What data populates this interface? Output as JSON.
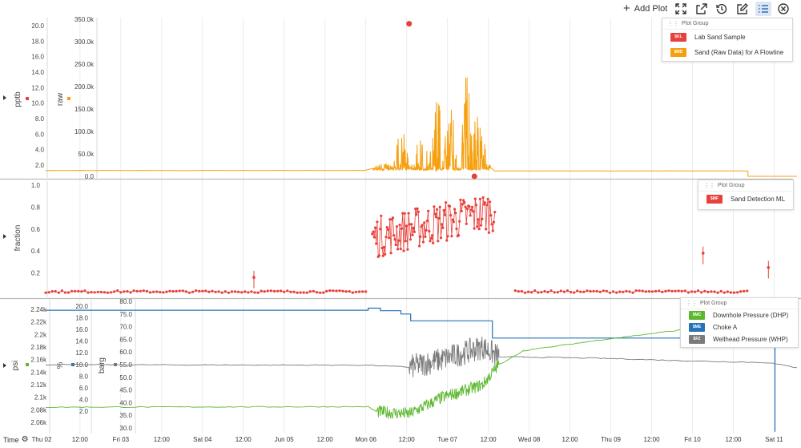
{
  "toolbar": {
    "add_plot_label": "Add Plot",
    "icons": [
      "fullscreen-icon",
      "export-icon",
      "history-icon",
      "edit-icon",
      "list-icon",
      "close-icon"
    ]
  },
  "time_axis": {
    "label": "Time",
    "ticks": [
      "Thu 02",
      "12:00",
      "Fri 03",
      "12:00",
      "Sat 04",
      "12:00",
      "Jun 05",
      "12:00",
      "Mon 06",
      "12:00",
      "Tue 07",
      "12:00",
      "Wed 08",
      "12:00",
      "Thu 09",
      "12:00",
      "Fri 10",
      "12:00",
      "Sat 11"
    ]
  },
  "legends": {
    "top": {
      "header": "Plot Group",
      "items": [
        {
          "badge": "$KL",
          "label": "Lab Sand Sample",
          "color": "#e8413b"
        },
        {
          "badge": "$MD",
          "label": "Sand (Raw Data) for A Flowline",
          "color": "#f5a00f"
        }
      ]
    },
    "middle": {
      "header": "Plot Group",
      "items": [
        {
          "badge": "$MF",
          "label": "Sand Detection ML",
          "color": "#e8413b"
        }
      ]
    },
    "bottom": {
      "header": "Plot Group",
      "items": [
        {
          "badge": "$MC",
          "label": "Downhole Pressure (DHP)",
          "color": "#5cb82e"
        },
        {
          "badge": "$ME",
          "label": "Choke A",
          "color": "#2872b8"
        },
        {
          "badge": "$FZ",
          "label": "Wellhead Pressure (WHP)",
          "color": "#7a7a7a"
        }
      ]
    }
  },
  "chart_data": [
    {
      "type": "line",
      "panel": "top",
      "x_unit": "days since Thu 02 00:00",
      "xlim": [
        0.15,
        9.35
      ],
      "axes": [
        {
          "ylabel": "pptb",
          "ticks": [
            "2.0",
            "4.0",
            "6.0",
            "8.0",
            "10.0",
            "12.0",
            "14.0",
            "16.0",
            "18.0",
            "20.0"
          ],
          "color": "#e8413b"
        },
        {
          "ylabel": "raw",
          "ticks": [
            "0.0",
            "50.0k",
            "100.0k",
            "150.0k",
            "200.0k",
            "250.0k",
            "300.0k",
            "350.0k"
          ],
          "ylim": [
            0,
            350000
          ],
          "color": "#f5a00f"
        }
      ],
      "series": [
        {
          "name": "Lab Sand Sample",
          "kind": "points",
          "color": "#e8413b",
          "points": [
            [
              4.6,
              340000
            ],
            [
              5.4,
              0
            ]
          ]
        },
        {
          "name": "Sand (Raw Data) for A Flowline",
          "kind": "line",
          "color": "#f5a00f",
          "baseline": 13000,
          "segments": [
            [
              0.15,
              4.1,
              13000
            ],
            [
              5.65,
              8.75,
              12000
            ]
          ],
          "burst": {
            "x_range": [
              4.15,
              5.6
            ],
            "peaks": [
              [
                4.5,
                110000
              ],
              [
                4.75,
                95000
              ],
              [
                4.95,
                175000
              ],
              [
                5.1,
                170000
              ],
              [
                5.3,
                250000
              ],
              [
                5.45,
                150000
              ]
            ],
            "end_value": 12000
          }
        }
      ]
    },
    {
      "type": "scatter",
      "panel": "middle",
      "x_unit": "days since Thu 02 00:00",
      "xlim": [
        0.15,
        9.35
      ],
      "ylabel": "fraction",
      "ticks": [
        "0.2",
        "0.4",
        "0.6",
        "0.8",
        "1.0"
      ],
      "ylim": [
        0.0,
        1.0
      ],
      "series": [
        {
          "name": "Sand Detection ML",
          "color": "#e8413b",
          "segments": [
            {
              "x_range": [
                0.15,
                4.1
              ],
              "level": 0.03
            },
            {
              "x_range": [
                4.15,
                5.65
              ],
              "level": 0.6
            },
            {
              "x_range": [
                5.9,
                8.75
              ],
              "level": 0.03
            }
          ],
          "outliers": [
            [
              2.7,
              0.16
            ],
            [
              8.2,
              0.38
            ],
            [
              9.0,
              0.25
            ]
          ]
        }
      ]
    },
    {
      "type": "line",
      "panel": "bottom",
      "x_unit": "days since Thu 02 00:00",
      "xlim": [
        0.15,
        9.35
      ],
      "axes": [
        {
          "ylabel": "psi",
          "ticks": [
            "2.06k",
            "2.08k",
            "2.1k",
            "2.12k",
            "2.14k",
            "2.16k",
            "2.18k",
            "2.2k",
            "2.22k",
            "2.24k"
          ],
          "color": "#5cb82e"
        },
        {
          "ylabel": "%",
          "ticks": [
            "2.0",
            "4.0",
            "6.0",
            "8.0",
            "10.0",
            "12.0",
            "14.0",
            "16.0",
            "18.0",
            "20.0"
          ],
          "color": "#2872b8"
        },
        {
          "ylabel": "barg",
          "ticks": [
            "30.0",
            "35.0",
            "40.0",
            "45.0",
            "50.0",
            "55.0",
            "60.0",
            "65.0",
            "70.0",
            "75.0",
            "80.0"
          ],
          "ylim": [
            28.5,
            80
          ],
          "color": "#7a7a7a"
        }
      ],
      "series": [
        {
          "name": "Downhole Pressure (DHP)",
          "color": "#5cb82e",
          "unit": "barg",
          "points": [
            [
              0.15,
              38.2
            ],
            [
              4.1,
              38.4
            ],
            [
              4.2,
              36.5
            ],
            [
              4.6,
              35.5
            ],
            [
              5.0,
              42.0
            ],
            [
              5.5,
              47.0
            ],
            [
              5.7,
              55.0
            ],
            [
              6.0,
              60.5
            ],
            [
              7.0,
              65.0
            ],
            [
              8.0,
              69.0
            ],
            [
              8.6,
              71.0
            ]
          ],
          "noise_range": [
            4.15,
            5.7
          ]
        },
        {
          "name": "Choke A",
          "color": "#2872b8",
          "unit": "barg",
          "points": [
            [
              0.15,
              76.5
            ],
            [
              4.1,
              76.5
            ],
            [
              4.1,
              77.3
            ],
            [
              4.25,
              77.3
            ],
            [
              4.25,
              76.3
            ],
            [
              4.5,
              76.3
            ],
            [
              4.5,
              75.0
            ],
            [
              4.62,
              75.0
            ],
            [
              4.62,
              72.3
            ],
            [
              5.62,
              72.3
            ],
            [
              5.62,
              65.5
            ],
            [
              9.08,
              65.5
            ],
            [
              9.08,
              28.5
            ]
          ]
        },
        {
          "name": "Wellhead Pressure (WHP)",
          "color": "#7a7a7a",
          "unit": "barg",
          "points": [
            [
              0.15,
              55.0
            ],
            [
              4.1,
              54.8
            ],
            [
              4.6,
              54.0
            ],
            [
              5.0,
              57.0
            ],
            [
              5.5,
              62.0
            ],
            [
              5.7,
              58.0
            ],
            [
              6.0,
              58.0
            ],
            [
              7.0,
              57.5
            ],
            [
              8.0,
              56.5
            ],
            [
              9.0,
              55.8
            ],
            [
              9.35,
              53.8
            ]
          ],
          "noise_range": [
            4.15,
            5.7
          ]
        }
      ]
    }
  ]
}
